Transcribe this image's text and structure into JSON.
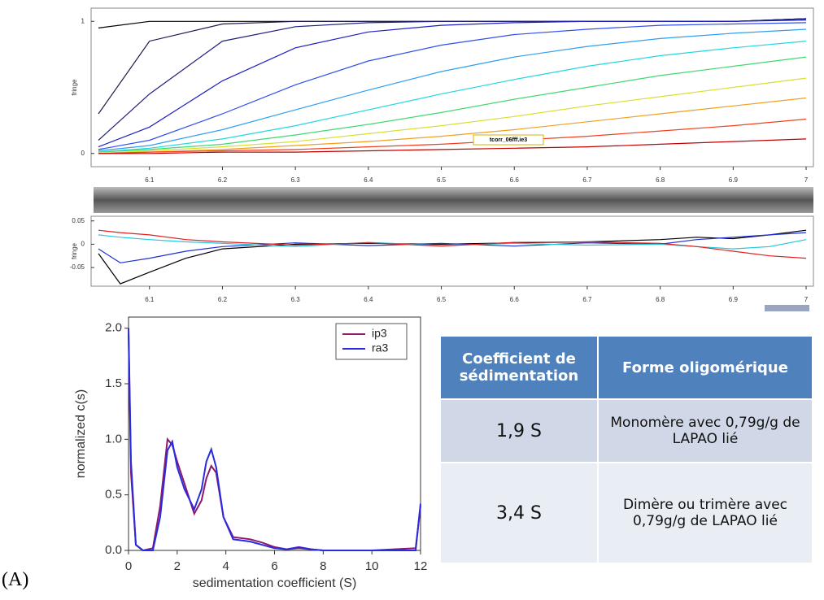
{
  "chart_data": [
    {
      "type": "line",
      "ylabel": "fringe",
      "annotation": "tcorr_06fff.ie3",
      "x": [
        6.03,
        6.1,
        6.2,
        6.3,
        6.4,
        6.5,
        6.6,
        6.7,
        6.8,
        6.9,
        7.0
      ],
      "xlim": [
        6.02,
        7.01
      ],
      "ylim": [
        -0.1,
        1.1
      ],
      "xticks": [
        6.1,
        6.2,
        6.3,
        6.4,
        6.5,
        6.6,
        6.7,
        6.8,
        6.9,
        7
      ],
      "yticks": [
        0,
        1
      ],
      "series": [
        {
          "color": "#000000",
          "values": [
            0.95,
            1,
            1,
            1,
            1,
            1,
            1,
            1,
            1,
            1,
            1.02
          ]
        },
        {
          "color": "#1a1a4a",
          "values": [
            0.3,
            0.85,
            0.98,
            1,
            1,
            1,
            1,
            1,
            1,
            1,
            1.02
          ]
        },
        {
          "color": "#20207a",
          "values": [
            0.1,
            0.45,
            0.85,
            0.96,
            0.99,
            1,
            1,
            1,
            1,
            1,
            1.02
          ]
        },
        {
          "color": "#2020c0",
          "values": [
            0.05,
            0.2,
            0.55,
            0.8,
            0.92,
            0.97,
            0.99,
            1,
            1,
            1,
            1.01
          ]
        },
        {
          "color": "#3050f0",
          "values": [
            0.03,
            0.1,
            0.3,
            0.52,
            0.7,
            0.82,
            0.9,
            0.94,
            0.97,
            0.98,
            0.99
          ]
        },
        {
          "color": "#30a0f0",
          "values": [
            0.02,
            0.06,
            0.18,
            0.33,
            0.48,
            0.62,
            0.73,
            0.81,
            0.87,
            0.91,
            0.94
          ]
        },
        {
          "color": "#20d8e0",
          "values": [
            0.01,
            0.04,
            0.11,
            0.21,
            0.33,
            0.45,
            0.56,
            0.66,
            0.74,
            0.8,
            0.85
          ]
        },
        {
          "color": "#40d870",
          "values": [
            0.01,
            0.03,
            0.07,
            0.14,
            0.22,
            0.31,
            0.41,
            0.5,
            0.59,
            0.66,
            0.73
          ]
        },
        {
          "color": "#d8e030",
          "values": [
            0,
            0.02,
            0.05,
            0.09,
            0.15,
            0.21,
            0.28,
            0.36,
            0.43,
            0.5,
            0.57
          ]
        },
        {
          "color": "#f0a020",
          "values": [
            0,
            0.01,
            0.03,
            0.06,
            0.09,
            0.13,
            0.18,
            0.24,
            0.3,
            0.36,
            0.42
          ]
        },
        {
          "color": "#f04020",
          "values": [
            0,
            0.01,
            0.02,
            0.03,
            0.05,
            0.07,
            0.1,
            0.13,
            0.17,
            0.21,
            0.26
          ]
        },
        {
          "color": "#c00000",
          "values": [
            0,
            0,
            0.01,
            0.01,
            0.02,
            0.03,
            0.04,
            0.05,
            0.07,
            0.09,
            0.11
          ]
        }
      ]
    },
    {
      "type": "line",
      "ylabel": "fringe",
      "x": [
        6.03,
        6.06,
        6.1,
        6.15,
        6.2,
        6.3,
        6.4,
        6.5,
        6.6,
        6.7,
        6.8,
        6.85,
        6.9,
        6.95,
        7.0
      ],
      "xlim": [
        6.02,
        7.01
      ],
      "ylim": [
        -0.09,
        0.06
      ],
      "xticks": [
        6.1,
        6.2,
        6.3,
        6.4,
        6.5,
        6.6,
        6.7,
        6.8,
        6.9,
        7
      ],
      "yticks": [
        0.05,
        0,
        -0.05
      ],
      "series": [
        {
          "color": "#000000",
          "values": [
            -0.02,
            -0.085,
            -0.06,
            -0.03,
            -0.01,
            0,
            0.002,
            0,
            0.003,
            0.005,
            0.01,
            0.015,
            0.012,
            0.02,
            0.03
          ]
        },
        {
          "color": "#2030d0",
          "values": [
            -0.01,
            -0.04,
            -0.03,
            -0.015,
            -0.005,
            0.003,
            -0.003,
            0.002,
            -0.004,
            0.003,
            0,
            0.01,
            0.015,
            0.02,
            0.025
          ]
        },
        {
          "color": "#20c8e0",
          "values": [
            0.02,
            0.015,
            0.01,
            0.005,
            0.002,
            -0.005,
            0.004,
            -0.003,
            0.002,
            -0.002,
            0,
            -0.005,
            -0.01,
            -0.005,
            0.01
          ]
        },
        {
          "color": "#e02020",
          "values": [
            0.03,
            0.025,
            0.02,
            0.01,
            0.005,
            -0.002,
            0.003,
            -0.004,
            0.004,
            0.005,
            0.002,
            -0.005,
            -0.015,
            -0.025,
            -0.03
          ]
        }
      ]
    },
    {
      "type": "line",
      "xlabel": "sedimentation coefficient (S)",
      "ylabel": "normalized c(s)",
      "legend": "upper right",
      "x": [
        0,
        0.1,
        0.3,
        0.6,
        1.0,
        1.3,
        1.6,
        1.8,
        2.0,
        2.3,
        2.7,
        3.0,
        3.2,
        3.4,
        3.6,
        3.9,
        4.3,
        5.0,
        5.5,
        6.0,
        6.5,
        7.0,
        7.5,
        8,
        10,
        11.8,
        12
      ],
      "xlim": [
        0,
        12
      ],
      "ylim": [
        0,
        2.1
      ],
      "xticks": [
        0,
        2,
        4,
        6,
        8,
        10,
        12
      ],
      "yticks": [
        {
          "value": 0,
          "label": "0.0"
        },
        0.5,
        {
          "value": 1,
          "label": "1.0"
        },
        1.5,
        {
          "value": 2,
          "label": "2.0"
        }
      ],
      "series": [
        {
          "name": "ip3",
          "color": "#8b1a6b",
          "values": [
            1.95,
            0.7,
            0.05,
            0,
            0.02,
            0.4,
            1.0,
            0.95,
            0.8,
            0.6,
            0.33,
            0.45,
            0.65,
            0.76,
            0.7,
            0.3,
            0.12,
            0.1,
            0.07,
            0.03,
            0.01,
            0.02,
            0.01,
            0,
            0,
            0.02,
            0.4
          ]
        },
        {
          "name": "ra3",
          "color": "#2a2ae0",
          "values": [
            2.0,
            0.8,
            0.05,
            0,
            0,
            0.3,
            0.9,
            0.98,
            0.75,
            0.55,
            0.37,
            0.55,
            0.8,
            0.91,
            0.75,
            0.3,
            0.1,
            0.08,
            0.05,
            0.02,
            0.01,
            0.03,
            0.01,
            0,
            0,
            0,
            0.42
          ]
        }
      ]
    }
  ],
  "table": {
    "header": [
      "Coefficient de sédimentation",
      "Forme oligomérique"
    ],
    "rows": [
      [
        "1,9 S",
        "Monomère avec 0,79g/g de LAPAO lié"
      ],
      [
        "3,4 S",
        "Dimère ou trimère avec 0,79g/g de LAPAO lié"
      ]
    ]
  },
  "label": "(A)"
}
